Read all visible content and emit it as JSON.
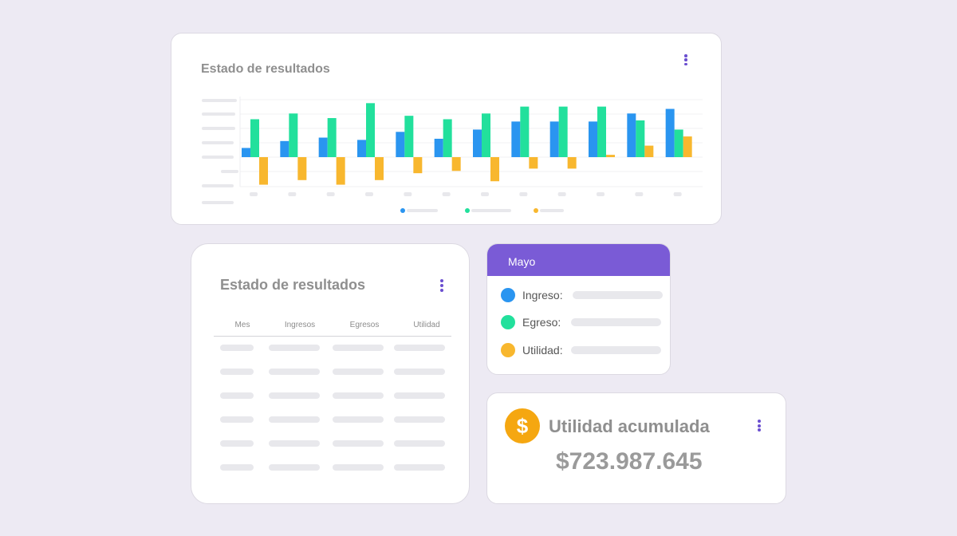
{
  "chart_card": {
    "title": "Estado de resultados",
    "menu_icon": "kebab-menu-icon"
  },
  "chart_data": {
    "type": "bar",
    "categories": [
      "",
      "",
      "",
      "",
      "",
      "",
      "",
      "",
      "",
      "",
      "",
      ""
    ],
    "series": [
      {
        "values": [
          0.8,
          1.4,
          1.7,
          1.5,
          2.2,
          1.6,
          2.4,
          3.1,
          3.1,
          3.1,
          3.8,
          4.2
        ]
      },
      {
        "values": [
          3.3,
          3.8,
          3.4,
          4.7,
          3.6,
          3.3,
          3.8,
          4.4,
          4.4,
          4.4,
          3.2,
          2.4
        ]
      },
      {
        "values": [
          -2.4,
          -2.0,
          -2.4,
          -2.0,
          -1.4,
          -1.2,
          -2.1,
          -1.0,
          -1.0,
          0.2,
          1.0,
          1.8
        ]
      }
    ],
    "colors": [
      "#2a95f0",
      "#22e09c",
      "#f8b72e"
    ],
    "ylim": [
      -3,
      5
    ],
    "grid": true,
    "legend": "bottom-center"
  },
  "table_card": {
    "title": "Estado de resultados",
    "menu_icon": "kebab-menu-icon",
    "columns": [
      "Mes",
      "Ingresos",
      "Egresos",
      "Utilidad"
    ],
    "row_count": 6
  },
  "month_card": {
    "title": "Mayo",
    "header_color": "#7a5bd6",
    "items": [
      {
        "label": "Ingreso:",
        "color": "#2a95f0"
      },
      {
        "label": "Egreso:",
        "color": "#22e09c"
      },
      {
        "label": "Utilidad:",
        "color": "#f8b72e"
      }
    ]
  },
  "total_card": {
    "coin_symbol": "$",
    "coin_icon": "dollar-coin-icon",
    "title": "Utilidad acumulada",
    "value": "$723.987.645",
    "menu_icon": "kebab-menu-icon"
  }
}
